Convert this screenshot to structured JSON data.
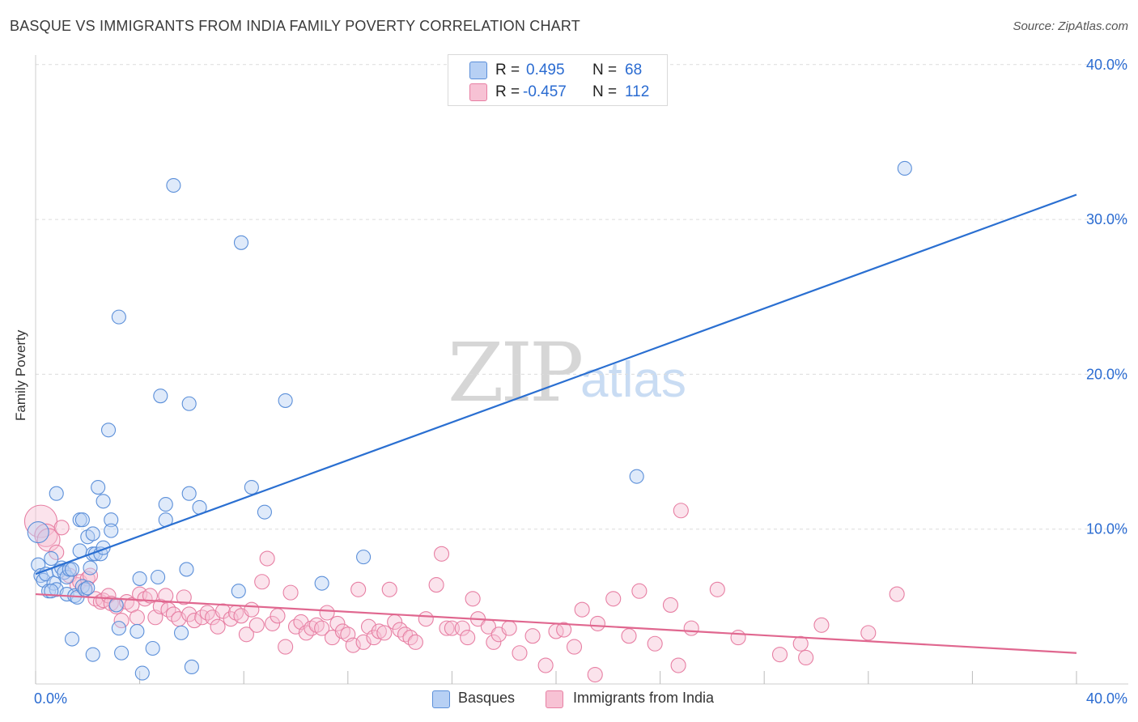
{
  "title": "BASQUE VS IMMIGRANTS FROM INDIA FAMILY POVERTY CORRELATION CHART",
  "source": "Source: ZipAtlas.com",
  "watermark": {
    "zip": "ZIP",
    "atlas": "atlas"
  },
  "colors": {
    "basques": "#5b8fd9",
    "basques_fill": "#b7d0f4",
    "india": "#e77fa3",
    "india_fill": "#f7c2d4",
    "basques_line": "#2a6fd1",
    "india_line": "#e0678f",
    "tick_text": "#2a6bd1"
  },
  "legend_top": {
    "rows": [
      {
        "r_label": "R =",
        "r_value": "0.495",
        "n_label": "N =",
        "n_value": "68"
      },
      {
        "r_label": "R =",
        "r_value": "-0.457",
        "n_label": "N =",
        "n_value": "112"
      }
    ]
  },
  "legend_bottom": [
    {
      "label": "Basques"
    },
    {
      "label": "Immigrants from India"
    }
  ],
  "chart_data": {
    "type": "scatter",
    "title": "BASQUE VS IMMIGRANTS FROM INDIA FAMILY POVERTY CORRELATION CHART",
    "xlabel": "",
    "ylabel": "Family Poverty",
    "xlim": [
      0,
      40
    ],
    "ylim": [
      0,
      40
    ],
    "x_tick_labels": {
      "left": "0.0%",
      "right": "40.0%"
    },
    "y_ticks": [
      {
        "value": 10,
        "label": "10.0%"
      },
      {
        "value": 20,
        "label": "20.0%"
      },
      {
        "value": 30,
        "label": "30.0%"
      },
      {
        "value": 40,
        "label": "40.0%"
      }
    ],
    "grid": true,
    "legend": "top-center",
    "series": [
      {
        "name": "Basques",
        "r": 0.495,
        "n": 68,
        "trend": [
          [
            0,
            7.1
          ],
          [
            40,
            31.6
          ]
        ],
        "points": [
          [
            0.1,
            9.8
          ],
          [
            0.1,
            7.7
          ],
          [
            0.2,
            7.0
          ],
          [
            0.3,
            6.7
          ],
          [
            0.4,
            7.1
          ],
          [
            0.5,
            6.0
          ],
          [
            0.6,
            8.1
          ],
          [
            0.7,
            6.5
          ],
          [
            0.8,
            6.1
          ],
          [
            0.8,
            12.3
          ],
          [
            0.9,
            7.3
          ],
          [
            1.0,
            7.5
          ],
          [
            1.1,
            7.2
          ],
          [
            1.2,
            6.9
          ],
          [
            1.2,
            5.8
          ],
          [
            1.3,
            7.4
          ],
          [
            1.4,
            7.4
          ],
          [
            1.5,
            5.7
          ],
          [
            1.6,
            5.6
          ],
          [
            1.7,
            8.6
          ],
          [
            1.7,
            10.6
          ],
          [
            1.8,
            10.6
          ],
          [
            1.8,
            6.3
          ],
          [
            1.9,
            6.1
          ],
          [
            2.0,
            6.2
          ],
          [
            2.0,
            9.5
          ],
          [
            2.1,
            7.5
          ],
          [
            2.2,
            9.7
          ],
          [
            2.2,
            8.4
          ],
          [
            2.3,
            8.4
          ],
          [
            2.4,
            12.7
          ],
          [
            2.5,
            8.4
          ],
          [
            2.6,
            11.8
          ],
          [
            2.6,
            8.8
          ],
          [
            2.8,
            16.4
          ],
          [
            2.9,
            10.6
          ],
          [
            2.9,
            9.9
          ],
          [
            3.1,
            5.1
          ],
          [
            3.2,
            23.7
          ],
          [
            3.2,
            3.6
          ],
          [
            3.3,
            2.0
          ],
          [
            3.9,
            3.4
          ],
          [
            4.0,
            6.8
          ],
          [
            4.1,
            0.7
          ],
          [
            4.5,
            2.3
          ],
          [
            4.7,
            6.9
          ],
          [
            4.8,
            18.6
          ],
          [
            5.0,
            11.6
          ],
          [
            5.0,
            10.6
          ],
          [
            5.3,
            32.2
          ],
          [
            5.6,
            3.3
          ],
          [
            5.8,
            7.4
          ],
          [
            5.9,
            12.3
          ],
          [
            5.9,
            18.1
          ],
          [
            6.0,
            1.1
          ],
          [
            6.3,
            11.4
          ],
          [
            7.8,
            6.0
          ],
          [
            7.9,
            28.5
          ],
          [
            8.3,
            12.7
          ],
          [
            8.8,
            11.1
          ],
          [
            9.6,
            18.3
          ],
          [
            11.0,
            6.5
          ],
          [
            12.6,
            8.2
          ],
          [
            23.1,
            13.4
          ],
          [
            33.4,
            33.3
          ],
          [
            1.4,
            2.9
          ],
          [
            2.2,
            1.9
          ],
          [
            0.6,
            6.0
          ]
        ]
      },
      {
        "name": "Immigrants from India",
        "r": -0.457,
        "n": 112,
        "trend": [
          [
            0,
            5.8
          ],
          [
            40,
            2.0
          ]
        ],
        "points": [
          [
            0.2,
            10.5
          ],
          [
            0.4,
            9.6
          ],
          [
            0.5,
            9.3
          ],
          [
            0.8,
            8.5
          ],
          [
            1.0,
            10.1
          ],
          [
            1.3,
            7.0
          ],
          [
            1.6,
            6.4
          ],
          [
            1.7,
            6.6
          ],
          [
            1.9,
            6.1
          ],
          [
            2.0,
            6.8
          ],
          [
            2.1,
            7.0
          ],
          [
            2.3,
            5.5
          ],
          [
            2.5,
            5.3
          ],
          [
            2.6,
            5.4
          ],
          [
            2.8,
            5.7
          ],
          [
            2.9,
            5.2
          ],
          [
            3.1,
            5.0
          ],
          [
            3.3,
            4.1
          ],
          [
            3.5,
            5.3
          ],
          [
            3.7,
            5.1
          ],
          [
            3.9,
            4.3
          ],
          [
            4.0,
            5.8
          ],
          [
            4.2,
            5.5
          ],
          [
            4.4,
            5.7
          ],
          [
            4.6,
            4.3
          ],
          [
            4.8,
            5.0
          ],
          [
            5.0,
            5.7
          ],
          [
            5.1,
            4.8
          ],
          [
            5.3,
            4.5
          ],
          [
            5.5,
            4.2
          ],
          [
            5.7,
            5.6
          ],
          [
            5.9,
            4.5
          ],
          [
            6.1,
            4.1
          ],
          [
            6.4,
            4.3
          ],
          [
            6.6,
            4.6
          ],
          [
            6.8,
            4.3
          ],
          [
            7.0,
            3.7
          ],
          [
            7.2,
            4.7
          ],
          [
            7.5,
            4.2
          ],
          [
            7.7,
            4.6
          ],
          [
            7.9,
            4.4
          ],
          [
            8.1,
            3.2
          ],
          [
            8.3,
            4.8
          ],
          [
            8.5,
            3.8
          ],
          [
            8.7,
            6.6
          ],
          [
            8.9,
            8.1
          ],
          [
            9.1,
            3.9
          ],
          [
            9.3,
            4.4
          ],
          [
            9.6,
            2.4
          ],
          [
            9.8,
            5.9
          ],
          [
            10.0,
            3.7
          ],
          [
            10.2,
            4.0
          ],
          [
            10.4,
            3.3
          ],
          [
            10.6,
            3.6
          ],
          [
            10.8,
            3.8
          ],
          [
            11.0,
            3.6
          ],
          [
            11.2,
            4.6
          ],
          [
            11.4,
            3.0
          ],
          [
            11.6,
            3.9
          ],
          [
            11.8,
            3.4
          ],
          [
            12.0,
            3.2
          ],
          [
            12.2,
            2.5
          ],
          [
            12.4,
            6.1
          ],
          [
            12.6,
            2.7
          ],
          [
            12.8,
            3.7
          ],
          [
            13.0,
            3.0
          ],
          [
            13.2,
            3.4
          ],
          [
            13.4,
            3.3
          ],
          [
            13.6,
            6.1
          ],
          [
            13.8,
            4.0
          ],
          [
            14.0,
            3.5
          ],
          [
            14.2,
            3.2
          ],
          [
            14.4,
            3.0
          ],
          [
            14.6,
            2.7
          ],
          [
            15.0,
            4.2
          ],
          [
            15.4,
            6.4
          ],
          [
            15.6,
            8.4
          ],
          [
            15.8,
            3.6
          ],
          [
            16.0,
            3.6
          ],
          [
            16.4,
            3.6
          ],
          [
            16.6,
            3.0
          ],
          [
            16.8,
            5.5
          ],
          [
            17.0,
            4.2
          ],
          [
            17.4,
            3.7
          ],
          [
            17.6,
            2.7
          ],
          [
            17.8,
            3.2
          ],
          [
            18.2,
            3.6
          ],
          [
            18.6,
            2.0
          ],
          [
            19.1,
            3.1
          ],
          [
            19.6,
            1.2
          ],
          [
            20.0,
            3.4
          ],
          [
            20.3,
            3.5
          ],
          [
            20.7,
            2.4
          ],
          [
            21.0,
            4.8
          ],
          [
            21.5,
            0.6
          ],
          [
            21.6,
            3.9
          ],
          [
            22.2,
            5.5
          ],
          [
            22.8,
            3.1
          ],
          [
            23.2,
            6.0
          ],
          [
            23.8,
            2.6
          ],
          [
            24.4,
            5.1
          ],
          [
            24.7,
            1.2
          ],
          [
            24.8,
            11.2
          ],
          [
            25.2,
            3.6
          ],
          [
            26.2,
            6.1
          ],
          [
            27.0,
            3.0
          ],
          [
            28.6,
            1.9
          ],
          [
            29.4,
            2.6
          ],
          [
            29.6,
            1.7
          ],
          [
            30.2,
            3.8
          ],
          [
            32.0,
            3.3
          ],
          [
            33.1,
            5.8
          ]
        ]
      }
    ]
  }
}
